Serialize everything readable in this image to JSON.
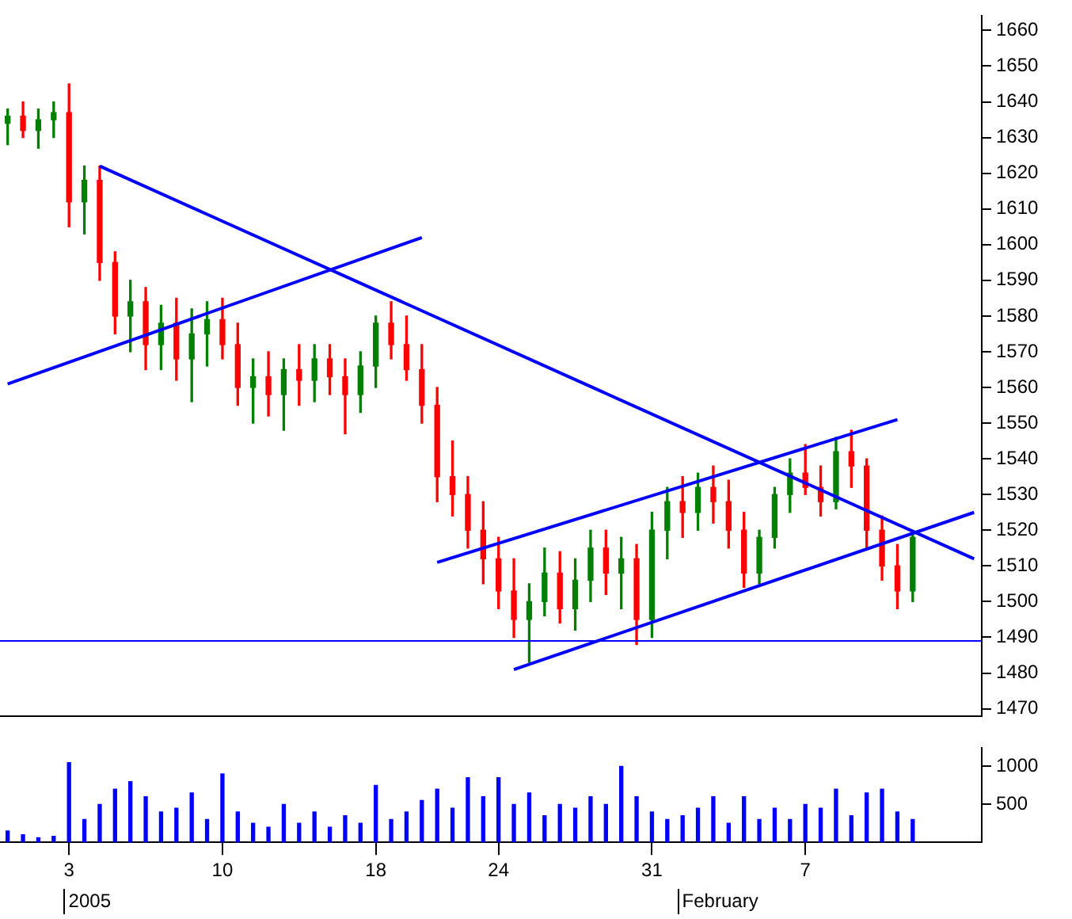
{
  "chart_data": [
    {
      "type": "candlestick",
      "ylim": [
        1468,
        1664
      ],
      "yticks": [
        1470,
        1480,
        1490,
        1500,
        1510,
        1520,
        1530,
        1540,
        1550,
        1560,
        1570,
        1580,
        1590,
        1600,
        1610,
        1620,
        1630,
        1640,
        1650,
        1660
      ],
      "tick_labels": "y",
      "grid": false,
      "legend": false,
      "categories": [
        null,
        null,
        null,
        null,
        "3",
        null,
        null,
        null,
        null,
        null,
        null,
        null,
        null,
        null,
        "10",
        null,
        null,
        null,
        null,
        null,
        null,
        null,
        null,
        null,
        "18",
        null,
        null,
        null,
        null,
        null,
        null,
        null,
        "24",
        null,
        null,
        null,
        null,
        null,
        null,
        null,
        null,
        null,
        "31",
        null,
        null,
        null,
        null,
        null,
        null,
        null,
        null,
        null,
        "7",
        null,
        null,
        null,
        null,
        null,
        null,
        null,
        null,
        null,
        null,
        null
      ],
      "ohlc": [
        [
          1634,
          1638,
          1628,
          1636
        ],
        [
          1636,
          1640,
          1630,
          1632
        ],
        [
          1632,
          1638,
          1627,
          1635
        ],
        [
          1635,
          1640,
          1630,
          1637
        ],
        [
          1637,
          1645,
          1605,
          1612
        ],
        [
          1612,
          1622,
          1603,
          1618
        ],
        [
          1618,
          1622,
          1590,
          1595
        ],
        [
          1595,
          1598,
          1575,
          1580
        ],
        [
          1580,
          1590,
          1570,
          1584
        ],
        [
          1584,
          1588,
          1565,
          1572
        ],
        [
          1572,
          1583,
          1565,
          1578
        ],
        [
          1578,
          1585,
          1562,
          1568
        ],
        [
          1568,
          1582,
          1556,
          1575
        ],
        [
          1575,
          1584,
          1566,
          1579
        ],
        [
          1579,
          1585,
          1568,
          1572
        ],
        [
          1572,
          1578,
          1555,
          1560
        ],
        [
          1560,
          1568,
          1550,
          1563
        ],
        [
          1563,
          1570,
          1552,
          1558
        ],
        [
          1558,
          1568,
          1548,
          1565
        ],
        [
          1565,
          1572,
          1555,
          1562
        ],
        [
          1562,
          1572,
          1556,
          1568
        ],
        [
          1568,
          1572,
          1558,
          1563
        ],
        [
          1563,
          1568,
          1547,
          1558
        ],
        [
          1558,
          1570,
          1553,
          1566
        ],
        [
          1566,
          1580,
          1560,
          1578
        ],
        [
          1578,
          1584,
          1568,
          1572
        ],
        [
          1572,
          1580,
          1562,
          1565
        ],
        [
          1565,
          1572,
          1550,
          1555
        ],
        [
          1555,
          1560,
          1528,
          1535
        ],
        [
          1535,
          1545,
          1524,
          1530
        ],
        [
          1530,
          1535,
          1515,
          1520
        ],
        [
          1520,
          1528,
          1505,
          1512
        ],
        [
          1512,
          1518,
          1498,
          1503
        ],
        [
          1503,
          1512,
          1490,
          1495
        ],
        [
          1495,
          1505,
          1483,
          1500
        ],
        [
          1500,
          1515,
          1496,
          1508
        ],
        [
          1508,
          1514,
          1494,
          1498
        ],
        [
          1498,
          1512,
          1492,
          1506
        ],
        [
          1506,
          1520,
          1500,
          1515
        ],
        [
          1515,
          1520,
          1502,
          1508
        ],
        [
          1508,
          1518,
          1498,
          1512
        ],
        [
          1512,
          1516,
          1488,
          1495
        ],
        [
          1495,
          1525,
          1490,
          1520
        ],
        [
          1520,
          1532,
          1512,
          1528
        ],
        [
          1528,
          1535,
          1518,
          1525
        ],
        [
          1525,
          1536,
          1520,
          1532
        ],
        [
          1532,
          1538,
          1522,
          1528
        ],
        [
          1528,
          1534,
          1515,
          1520
        ],
        [
          1520,
          1525,
          1504,
          1508
        ],
        [
          1508,
          1520,
          1505,
          1518
        ],
        [
          1518,
          1532,
          1515,
          1530
        ],
        [
          1530,
          1540,
          1525,
          1536
        ],
        [
          1536,
          1544,
          1530,
          1532
        ],
        [
          1532,
          1538,
          1524,
          1528
        ],
        [
          1528,
          1546,
          1526,
          1542
        ],
        [
          1542,
          1548,
          1532,
          1538
        ],
        [
          1538,
          1540,
          1515,
          1520
        ],
        [
          1520,
          1524,
          1506,
          1510
        ],
        [
          1510,
          1516,
          1498,
          1503
        ],
        [
          1503,
          1520,
          1500,
          1518
        ],
        null,
        null,
        null,
        null
      ],
      "colors": [
        "#008000",
        "#ff0000",
        "#008000",
        "#008000",
        "#ff0000",
        "#008000",
        "#ff0000",
        "#ff0000",
        "#008000",
        "#ff0000",
        "#008000",
        "#ff0000",
        "#008000",
        "#008000",
        "#ff0000",
        "#ff0000",
        "#008000",
        "#ff0000",
        "#008000",
        "#ff0000",
        "#008000",
        "#ff0000",
        "#ff0000",
        "#008000",
        "#008000",
        "#ff0000",
        "#ff0000",
        "#ff0000",
        "#ff0000",
        "#ff0000",
        "#ff0000",
        "#ff0000",
        "#ff0000",
        "#ff0000",
        "#008000",
        "#008000",
        "#ff0000",
        "#008000",
        "#008000",
        "#ff0000",
        "#008000",
        "#ff0000",
        "#008000",
        "#008000",
        "#ff0000",
        "#008000",
        "#ff0000",
        "#ff0000",
        "#ff0000",
        "#008000",
        "#008000",
        "#008000",
        "#ff0000",
        "#ff0000",
        "#008000",
        "#ff0000",
        "#ff0000",
        "#ff0000",
        "#ff0000",
        "#008000",
        null,
        null,
        null,
        null
      ],
      "series": [
        {
          "type": "line",
          "color": "#0000ff",
          "values": [
            null,
            null,
            null,
            null,
            null,
            null,
            1622,
            null,
            null,
            null,
            null,
            null,
            null,
            null,
            null,
            null,
            null,
            null,
            null,
            null,
            null,
            null,
            null,
            null,
            null,
            null,
            null,
            null,
            null,
            null,
            null,
            null,
            null,
            null,
            null,
            null,
            null,
            null,
            null,
            null,
            null,
            null,
            null,
            null,
            null,
            null,
            null,
            null,
            null,
            null,
            null,
            null,
            null,
            null,
            null,
            null,
            null,
            null,
            null,
            null,
            null,
            null,
            null,
            1512
          ]
        },
        {
          "type": "line",
          "color": "#0000ff",
          "values": [
            1561,
            null,
            null,
            null,
            null,
            null,
            null,
            null,
            null,
            null,
            null,
            null,
            null,
            null,
            null,
            null,
            null,
            null,
            null,
            null,
            null,
            null,
            null,
            null,
            null,
            null,
            null,
            1602,
            null,
            null,
            null,
            null,
            null,
            null,
            null,
            null,
            null,
            null,
            null,
            null,
            null,
            null,
            null,
            null,
            null,
            null,
            null,
            null,
            null,
            null,
            null,
            null,
            null,
            null,
            null,
            null,
            null,
            null,
            null,
            null,
            null,
            null,
            null,
            null
          ]
        },
        {
          "type": "line",
          "color": "#0000ff",
          "values": [
            null,
            null,
            null,
            null,
            null,
            null,
            null,
            null,
            null,
            null,
            null,
            null,
            null,
            null,
            null,
            null,
            null,
            null,
            null,
            null,
            null,
            null,
            null,
            null,
            null,
            null,
            null,
            null,
            1511,
            null,
            null,
            null,
            null,
            null,
            null,
            null,
            null,
            null,
            null,
            null,
            null,
            null,
            null,
            null,
            null,
            null,
            null,
            null,
            null,
            null,
            null,
            null,
            null,
            null,
            null,
            null,
            null,
            null,
            1551,
            null,
            null,
            null,
            null,
            null
          ]
        },
        {
          "type": "line",
          "color": "#0000ff",
          "values": [
            null,
            null,
            null,
            null,
            null,
            null,
            null,
            null,
            null,
            null,
            null,
            null,
            null,
            null,
            null,
            null,
            null,
            null,
            null,
            null,
            null,
            null,
            null,
            null,
            null,
            null,
            null,
            null,
            null,
            null,
            null,
            null,
            null,
            1481,
            null,
            null,
            null,
            null,
            null,
            null,
            null,
            null,
            null,
            null,
            null,
            null,
            null,
            null,
            null,
            null,
            null,
            null,
            null,
            null,
            null,
            null,
            null,
            null,
            null,
            null,
            null,
            null,
            null,
            1525
          ]
        }
      ],
      "ref_lines": [
        {
          "axis": "y",
          "value": 1489,
          "color": "#0000ff"
        }
      ]
    },
    {
      "type": "bar",
      "color": "#0000ff",
      "ylim": [
        0,
        1240
      ],
      "yticks": [
        500,
        1000
      ],
      "grid": false,
      "legend": false,
      "categories": [
        null,
        null,
        null,
        null,
        "3",
        null,
        null,
        null,
        null,
        null,
        null,
        null,
        null,
        null,
        "10",
        null,
        null,
        null,
        null,
        null,
        null,
        null,
        null,
        null,
        "18",
        null,
        null,
        null,
        null,
        null,
        null,
        null,
        "24",
        null,
        null,
        null,
        null,
        null,
        null,
        null,
        null,
        null,
        "31",
        null,
        null,
        null,
        null,
        null,
        null,
        null,
        null,
        null,
        "7",
        null,
        null,
        null,
        null,
        null,
        null,
        null,
        null,
        null,
        null,
        null
      ],
      "values": [
        150,
        100,
        60,
        80,
        1050,
        300,
        500,
        700,
        800,
        600,
        400,
        450,
        650,
        300,
        900,
        400,
        250,
        200,
        500,
        250,
        400,
        200,
        350,
        250,
        750,
        300,
        400,
        550,
        700,
        450,
        850,
        600,
        850,
        500,
        650,
        350,
        500,
        450,
        600,
        500,
        1000,
        600,
        400,
        300,
        350,
        450,
        600,
        250,
        600,
        300,
        450,
        300,
        500,
        450,
        700,
        350,
        650,
        700,
        400,
        300,
        null,
        null,
        null,
        null
      ],
      "annotations": [
        "2005",
        "February"
      ]
    }
  ]
}
